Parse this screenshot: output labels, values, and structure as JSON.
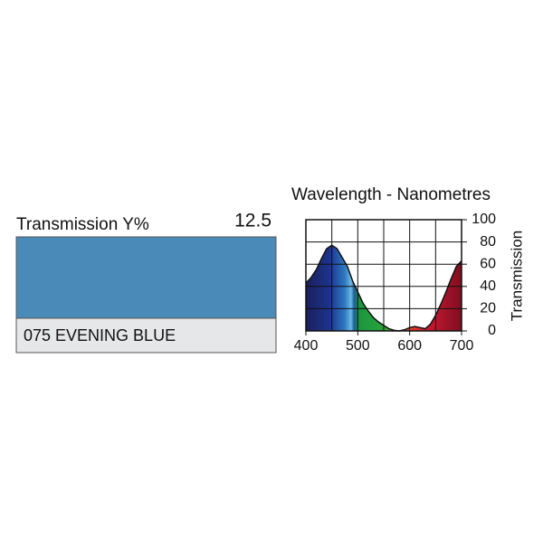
{
  "swatch": {
    "label": "Transmission Y%",
    "transmission_y": "12.5",
    "name": "075 EVENING BLUE",
    "color": "#4a8ab8"
  },
  "chart_data": {
    "type": "area",
    "title": "Wavelength - Nanometres",
    "y_label": "Transmission",
    "x": [
      400,
      410,
      420,
      430,
      440,
      450,
      460,
      470,
      480,
      490,
      500,
      510,
      520,
      530,
      540,
      550,
      560,
      570,
      580,
      590,
      600,
      610,
      620,
      630,
      640,
      650,
      660,
      670,
      680,
      690,
      700
    ],
    "values": [
      43,
      48,
      55,
      65,
      74,
      77,
      74,
      66,
      58,
      45,
      35,
      25,
      18,
      12,
      8,
      5,
      2,
      0.5,
      0,
      1,
      3,
      4,
      3,
      2,
      6,
      14,
      24,
      35,
      47,
      58,
      63
    ],
    "xlim": [
      400,
      700
    ],
    "ylim": [
      0,
      100
    ],
    "xticks": [
      400,
      500,
      600,
      700
    ],
    "yticks": [
      0,
      20,
      40,
      60,
      80,
      100
    ],
    "xgrid": [
      450,
      500,
      550,
      600,
      650
    ],
    "grid": true
  }
}
